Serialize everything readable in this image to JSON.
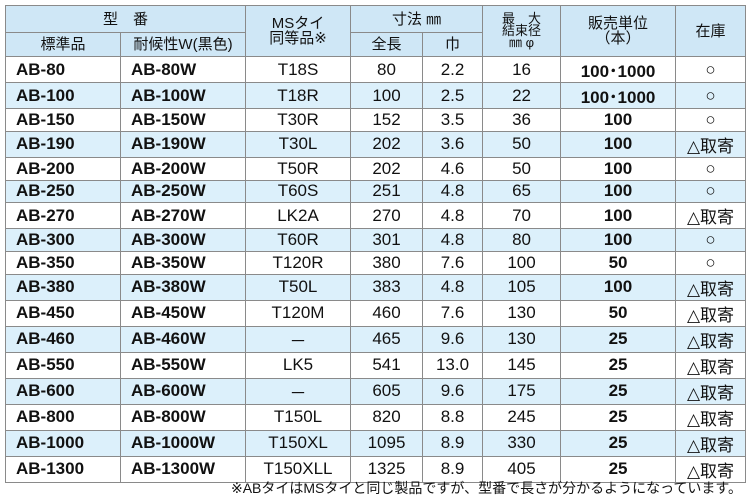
{
  "header": {
    "model": "型　番",
    "standard": "標準品",
    "weather": "耐候性W(黒色)",
    "ms": [
      "MSタイ",
      "同等品※"
    ],
    "size": "寸法 ㎜",
    "length": "全長",
    "width": "巾",
    "diameter": [
      "最　大",
      "結束径",
      "㎜ φ"
    ],
    "unit": [
      "販売単位",
      "（本）"
    ],
    "stock": "在庫"
  },
  "table": {
    "rows": [
      [
        "AB-80",
        "AB-80W",
        "T18S",
        "80",
        "2.2",
        "16",
        "100･1000",
        "○"
      ],
      [
        "AB-100",
        "AB-100W",
        "T18R",
        "100",
        "2.5",
        "22",
        "100･1000",
        "○"
      ],
      [
        "AB-150",
        "AB-150W",
        "T30R",
        "152",
        "3.5",
        "36",
        "100",
        "○"
      ],
      [
        "AB-190",
        "AB-190W",
        "T30L",
        "202",
        "3.6",
        "50",
        "100",
        "△取寄"
      ],
      [
        "AB-200",
        "AB-200W",
        "T50R",
        "202",
        "4.6",
        "50",
        "100",
        "○"
      ],
      [
        "AB-250",
        "AB-250W",
        "T60S",
        "251",
        "4.8",
        "65",
        "100",
        "○"
      ],
      [
        "AB-270",
        "AB-270W",
        "LK2A",
        "270",
        "4.8",
        "70",
        "100",
        "△取寄"
      ],
      [
        "AB-300",
        "AB-300W",
        "T60R",
        "301",
        "4.8",
        "80",
        "100",
        "○"
      ],
      [
        "AB-350",
        "AB-350W",
        "T120R",
        "380",
        "7.6",
        "100",
        "50",
        "○"
      ],
      [
        "AB-380",
        "AB-380W",
        "T50L",
        "383",
        "4.8",
        "105",
        "100",
        "△取寄"
      ],
      [
        "AB-450",
        "AB-450W",
        "T120M",
        "460",
        "7.6",
        "130",
        "50",
        "△取寄"
      ],
      [
        "AB-460",
        "AB-460W",
        "－",
        "465",
        "9.6",
        "130",
        "25",
        "△取寄"
      ],
      [
        "AB-550",
        "AB-550W",
        "LK5",
        "541",
        "13.0",
        "145",
        "25",
        "△取寄"
      ],
      [
        "AB-600",
        "AB-600W",
        "－",
        "605",
        "9.6",
        "175",
        "25",
        "△取寄"
      ],
      [
        "AB-800",
        "AB-800W",
        "T150L",
        "820",
        "8.8",
        "245",
        "25",
        "△取寄"
      ],
      [
        "AB-1000",
        "AB-1000W",
        "T150XL",
        "1095",
        "8.9",
        "330",
        "25",
        "△取寄"
      ],
      [
        "AB-1300",
        "AB-1300W",
        "T150XLL",
        "1325",
        "8.9",
        "405",
        "25",
        "△取寄"
      ]
    ]
  },
  "footer": "※ABタイはMSタイと同じ製品ですが、型番で長さが分かるようになっています。"
}
